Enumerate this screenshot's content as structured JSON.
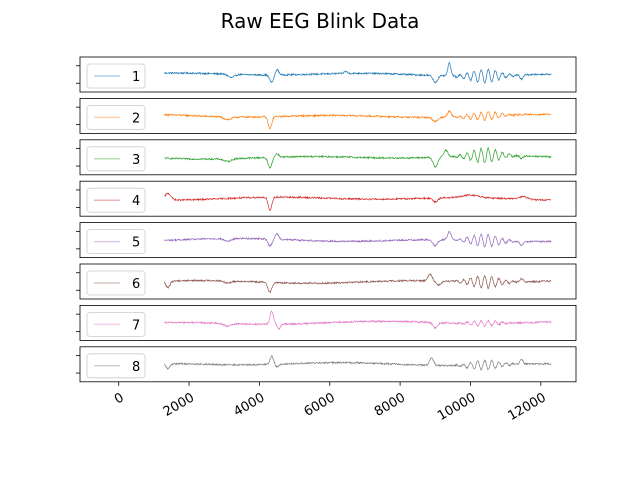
{
  "chart_data": {
    "type": "line",
    "title": "Raw EEG Blink Data",
    "xlabel": "",
    "ylabel": "",
    "xlim": [
      -1100,
      13000
    ],
    "x_ticks": [
      0,
      2000,
      4000,
      6000,
      8000,
      10000,
      12000
    ],
    "x_tick_labels": [
      "0",
      "2000",
      "4000",
      "6000",
      "8000",
      "10000",
      "12000"
    ],
    "x_range_of_data": [
      1300,
      12300
    ],
    "grid": false,
    "legend_placement": "left",
    "series": [
      {
        "name": "1",
        "color": "#1f77b4",
        "ylim": [
          -1,
          1
        ],
        "events": [
          {
            "x": 3200,
            "amp": -0.25,
            "w": 120
          },
          {
            "x": 4350,
            "amp": -0.55,
            "w": 80
          },
          {
            "x": 4500,
            "amp": 0.4,
            "w": 70
          },
          {
            "x": 6450,
            "amp": 0.15,
            "w": 60
          },
          {
            "x": 9000,
            "amp": -0.5,
            "w": 90
          },
          {
            "x": 9400,
            "amp": 0.95,
            "w": 60
          },
          {
            "x": 10400,
            "amp": 0.5,
            "w": 400,
            "osc": true
          },
          {
            "x": 11450,
            "amp": -0.3,
            "w": 60
          }
        ]
      },
      {
        "name": "2",
        "color": "#ff7f0e",
        "ylim": [
          -1,
          1
        ],
        "events": [
          {
            "x": 3100,
            "amp": -0.2,
            "w": 150
          },
          {
            "x": 4300,
            "amp": -0.9,
            "w": 70
          },
          {
            "x": 9000,
            "amp": -0.3,
            "w": 100
          },
          {
            "x": 9400,
            "amp": 0.45,
            "w": 80
          },
          {
            "x": 10400,
            "amp": 0.3,
            "w": 400,
            "osc": true
          }
        ]
      },
      {
        "name": "3",
        "color": "#2ca02c",
        "ylim": [
          -1,
          1
        ],
        "events": [
          {
            "x": 3100,
            "amp": -0.2,
            "w": 150
          },
          {
            "x": 4300,
            "amp": -0.75,
            "w": 80
          },
          {
            "x": 4500,
            "amp": 0.25,
            "w": 70
          },
          {
            "x": 9000,
            "amp": -0.7,
            "w": 90
          },
          {
            "x": 9300,
            "amp": 0.5,
            "w": 80
          },
          {
            "x": 10400,
            "amp": 0.55,
            "w": 400,
            "osc": true
          },
          {
            "x": 11450,
            "amp": -0.2,
            "w": 60
          }
        ]
      },
      {
        "name": "4",
        "color": "#d62728",
        "ylim": [
          -1,
          1
        ],
        "events": [
          {
            "x": 1400,
            "amp": 0.5,
            "w": 120
          },
          {
            "x": 4300,
            "amp": -1.0,
            "w": 70
          },
          {
            "x": 9000,
            "amp": -0.3,
            "w": 100
          },
          {
            "x": 10000,
            "amp": 0.2,
            "w": 300
          },
          {
            "x": 11500,
            "amp": 0.2,
            "w": 150
          }
        ]
      },
      {
        "name": "5",
        "color": "#9467bd",
        "ylim": [
          -1,
          1
        ],
        "events": [
          {
            "x": 3100,
            "amp": -0.2,
            "w": 150
          },
          {
            "x": 4300,
            "amp": -0.5,
            "w": 80
          },
          {
            "x": 4500,
            "amp": 0.4,
            "w": 70
          },
          {
            "x": 9000,
            "amp": -0.45,
            "w": 90
          },
          {
            "x": 9400,
            "amp": 0.6,
            "w": 70
          },
          {
            "x": 10400,
            "amp": 0.45,
            "w": 400,
            "osc": true
          },
          {
            "x": 11450,
            "amp": -0.3,
            "w": 60
          }
        ]
      },
      {
        "name": "6",
        "color": "#8c564b",
        "ylim": [
          -1,
          1
        ],
        "events": [
          {
            "x": 1400,
            "amp": -0.5,
            "w": 80
          },
          {
            "x": 3100,
            "amp": -0.15,
            "w": 150
          },
          {
            "x": 4300,
            "amp": -0.7,
            "w": 80
          },
          {
            "x": 8850,
            "amp": 0.5,
            "w": 80
          },
          {
            "x": 9100,
            "amp": -0.3,
            "w": 90
          },
          {
            "x": 10400,
            "amp": -0.45,
            "w": 400,
            "osc": true
          },
          {
            "x": 11450,
            "amp": 0.25,
            "w": 60
          }
        ]
      },
      {
        "name": "7",
        "color": "#e377c2",
        "ylim": [
          -1,
          1
        ],
        "events": [
          {
            "x": 3100,
            "amp": -0.2,
            "w": 150
          },
          {
            "x": 4350,
            "amp": 0.95,
            "w": 70
          },
          {
            "x": 4550,
            "amp": -0.35,
            "w": 60
          },
          {
            "x": 9000,
            "amp": -0.4,
            "w": 90
          },
          {
            "x": 10400,
            "amp": 0.2,
            "w": 400,
            "osc": true
          }
        ]
      },
      {
        "name": "8",
        "color": "#7f7f7f",
        "ylim": [
          -1,
          1
        ],
        "events": [
          {
            "x": 1400,
            "amp": -0.4,
            "w": 80
          },
          {
            "x": 4350,
            "amp": 0.6,
            "w": 70
          },
          {
            "x": 4500,
            "amp": -0.2,
            "w": 60
          },
          {
            "x": 8900,
            "amp": 0.55,
            "w": 80
          },
          {
            "x": 10400,
            "amp": -0.35,
            "w": 400,
            "osc": true
          },
          {
            "x": 11450,
            "amp": 0.35,
            "w": 60
          }
        ]
      }
    ]
  }
}
